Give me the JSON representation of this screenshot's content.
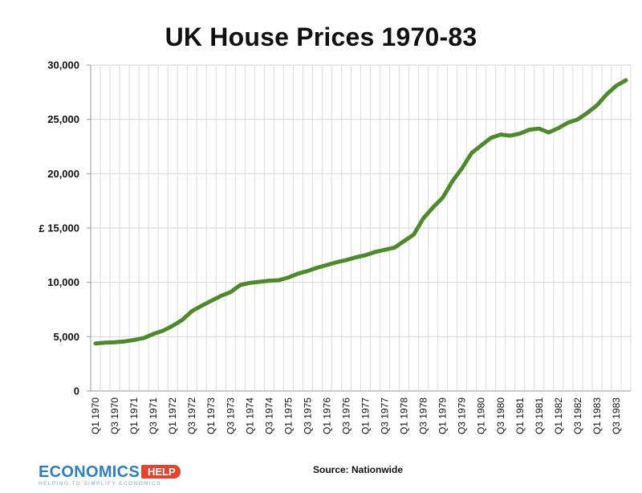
{
  "chart_data": {
    "type": "line",
    "title": "UK House Prices 1970-83",
    "ylabel": "£",
    "xlabel": "",
    "ylim": [
      0,
      30000
    ],
    "yticks": [
      "0",
      "5,000",
      "10,000",
      "15,000",
      "20,000",
      "25,000",
      "30,000"
    ],
    "ytick_values": [
      0,
      5000,
      10000,
      15000,
      20000,
      25000,
      30000
    ],
    "grid": "horizontal and vertical",
    "legend": "none",
    "line_color": "#4e8a2c",
    "xtick_labels": [
      "Q1 1970",
      "Q3 1970",
      "Q1 1971",
      "Q3 1971",
      "Q1 1972",
      "Q3 1972",
      "Q1 1973",
      "Q3 1973",
      "Q1 1974",
      "Q3 1974",
      "Q1 1975",
      "Q3 1975",
      "Q1 1976",
      "Q3 1976",
      "Q1 1977",
      "Q3 1977",
      "Q1 1978",
      "Q3 1978",
      "Q1 1979",
      "Q3 1979",
      "Q1 1980",
      "Q3 1980",
      "Q1 1981",
      "Q3 1981",
      "Q1 1982",
      "Q3 1982",
      "Q1 1983",
      "Q3 1983"
    ],
    "x": [
      "Q1 1970",
      "Q2 1970",
      "Q3 1970",
      "Q4 1970",
      "Q1 1971",
      "Q2 1971",
      "Q3 1971",
      "Q4 1971",
      "Q1 1972",
      "Q2 1972",
      "Q3 1972",
      "Q4 1972",
      "Q1 1973",
      "Q2 1973",
      "Q3 1973",
      "Q4 1973",
      "Q1 1974",
      "Q2 1974",
      "Q3 1974",
      "Q4 1974",
      "Q1 1975",
      "Q2 1975",
      "Q3 1975",
      "Q4 1975",
      "Q1 1976",
      "Q2 1976",
      "Q3 1976",
      "Q4 1976",
      "Q1 1977",
      "Q2 1977",
      "Q3 1977",
      "Q4 1977",
      "Q1 1978",
      "Q2 1978",
      "Q3 1978",
      "Q4 1978",
      "Q1 1979",
      "Q2 1979",
      "Q3 1979",
      "Q4 1979",
      "Q1 1980",
      "Q2 1980",
      "Q3 1980",
      "Q4 1980",
      "Q1 1981",
      "Q2 1981",
      "Q3 1981",
      "Q4 1981",
      "Q1 1982",
      "Q2 1982",
      "Q3 1982",
      "Q4 1982",
      "Q1 1983",
      "Q2 1983",
      "Q3 1983",
      "Q4 1983"
    ],
    "series": [
      {
        "values": [
          4380,
          4450,
          4490,
          4560,
          4700,
          4870,
          5250,
          5550,
          6000,
          6550,
          7350,
          7850,
          8300,
          8750,
          9100,
          9750,
          9950,
          10050,
          10150,
          10200,
          10450,
          10800,
          11050,
          11350,
          11600,
          11850,
          12050,
          12300,
          12500,
          12800,
          13000,
          13200,
          13800,
          14400,
          15900,
          16900,
          17800,
          19300,
          20500,
          21900,
          22600,
          23300,
          23600,
          23500,
          23700,
          24050,
          24150,
          23800,
          24200,
          24700,
          25000,
          25600,
          26300,
          27300,
          28100,
          28600
        ]
      }
    ]
  },
  "footer": {
    "source": "Source: Nationwide",
    "logo_word": "ECONOMICS",
    "logo_tag": "HELP",
    "logo_sub": "HELPING TO SIMPLIFY ECONOMICS"
  }
}
